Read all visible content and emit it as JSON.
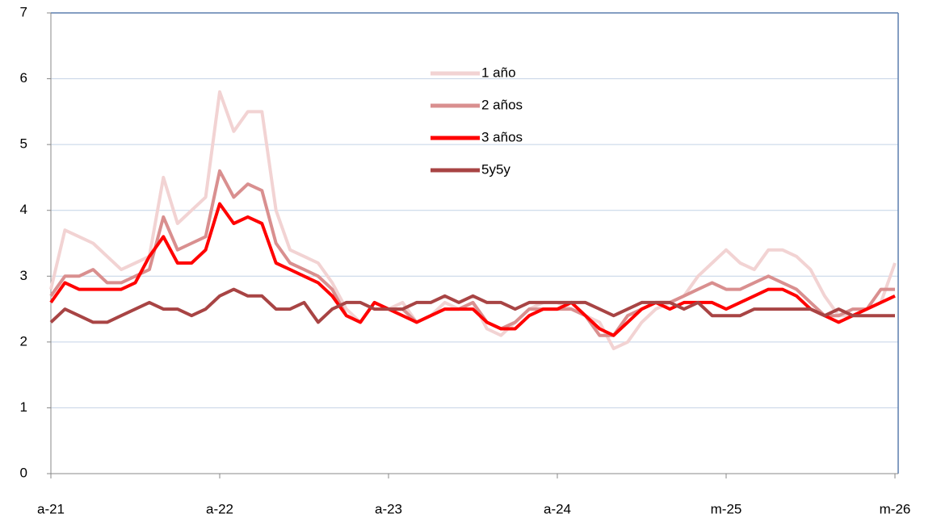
{
  "chart_data": {
    "type": "line",
    "categories": [
      "a-21",
      null,
      null,
      null,
      null,
      null,
      null,
      null,
      null,
      null,
      null,
      null,
      "a-22",
      null,
      null,
      null,
      null,
      null,
      null,
      null,
      null,
      null,
      null,
      null,
      "a-23",
      null,
      null,
      null,
      null,
      null,
      null,
      null,
      null,
      null,
      null,
      null,
      "a-24",
      null,
      null,
      null,
      null,
      null,
      null,
      null,
      null,
      null,
      null,
      null,
      "m-25",
      null,
      null,
      null,
      null,
      null,
      null,
      null,
      null,
      null,
      null,
      null,
      "m-26"
    ],
    "ylim": [
      0,
      7
    ],
    "yticks": [
      0,
      1,
      2,
      3,
      4,
      5,
      6,
      7
    ],
    "grid": true,
    "series": [
      {
        "name": "1 año",
        "color": "#f2d3d3",
        "values": [
          2.8,
          3.7,
          3.6,
          3.5,
          3.3,
          3.1,
          3.2,
          3.3,
          4.5,
          3.8,
          4.0,
          4.2,
          5.8,
          5.2,
          5.5,
          5.5,
          4.0,
          3.4,
          3.3,
          3.2,
          2.9,
          2.5,
          2.3,
          2.6,
          2.5,
          2.6,
          2.3,
          2.4,
          2.6,
          2.5,
          2.6,
          2.2,
          2.1,
          2.3,
          2.5,
          2.6,
          2.6,
          2.5,
          2.4,
          2.3,
          1.9,
          2.0,
          2.3,
          2.5,
          2.6,
          2.7,
          3.0,
          3.2,
          3.4,
          3.2,
          3.1,
          3.4,
          3.4,
          3.3,
          3.1,
          2.7,
          2.4,
          2.4,
          2.5,
          2.6,
          3.2
        ]
      },
      {
        "name": "2 años",
        "color": "#d98f8f",
        "values": [
          2.7,
          3.0,
          3.0,
          3.1,
          2.9,
          2.9,
          3.0,
          3.1,
          3.9,
          3.4,
          3.5,
          3.6,
          4.6,
          4.2,
          4.4,
          4.3,
          3.5,
          3.2,
          3.1,
          3.0,
          2.8,
          2.4,
          2.3,
          2.6,
          2.5,
          2.5,
          2.3,
          2.4,
          2.5,
          2.5,
          2.6,
          2.3,
          2.2,
          2.3,
          2.5,
          2.5,
          2.5,
          2.5,
          2.4,
          2.1,
          2.1,
          2.4,
          2.5,
          2.6,
          2.6,
          2.7,
          2.8,
          2.9,
          2.8,
          2.8,
          2.9,
          3.0,
          2.9,
          2.8,
          2.6,
          2.4,
          2.4,
          2.5,
          2.5,
          2.8,
          2.8
        ]
      },
      {
        "name": "3 años",
        "color": "#ff0000",
        "values": [
          2.6,
          2.9,
          2.8,
          2.8,
          2.8,
          2.8,
          2.9,
          3.3,
          3.6,
          3.2,
          3.2,
          3.4,
          4.1,
          3.8,
          3.9,
          3.8,
          3.2,
          3.1,
          3.0,
          2.9,
          2.7,
          2.4,
          2.3,
          2.6,
          2.5,
          2.4,
          2.3,
          2.4,
          2.5,
          2.5,
          2.5,
          2.3,
          2.2,
          2.2,
          2.4,
          2.5,
          2.5,
          2.6,
          2.4,
          2.2,
          2.1,
          2.3,
          2.5,
          2.6,
          2.5,
          2.6,
          2.6,
          2.6,
          2.5,
          2.6,
          2.7,
          2.8,
          2.8,
          2.7,
          2.5,
          2.4,
          2.3,
          2.4,
          2.5,
          2.6,
          2.7
        ]
      },
      {
        "name": "5y5y",
        "color": "#a84444",
        "values": [
          2.3,
          2.5,
          2.4,
          2.3,
          2.3,
          2.4,
          2.5,
          2.6,
          2.5,
          2.5,
          2.4,
          2.5,
          2.7,
          2.8,
          2.7,
          2.7,
          2.5,
          2.5,
          2.6,
          2.3,
          2.5,
          2.6,
          2.6,
          2.5,
          2.5,
          2.5,
          2.6,
          2.6,
          2.7,
          2.6,
          2.7,
          2.6,
          2.6,
          2.5,
          2.6,
          2.6,
          2.6,
          2.6,
          2.6,
          2.5,
          2.4,
          2.5,
          2.6,
          2.6,
          2.6,
          2.5,
          2.6,
          2.4,
          2.4,
          2.4,
          2.5,
          2.5,
          2.5,
          2.5,
          2.5,
          2.4,
          2.5,
          2.4,
          2.4,
          2.4,
          2.4
        ]
      }
    ]
  }
}
